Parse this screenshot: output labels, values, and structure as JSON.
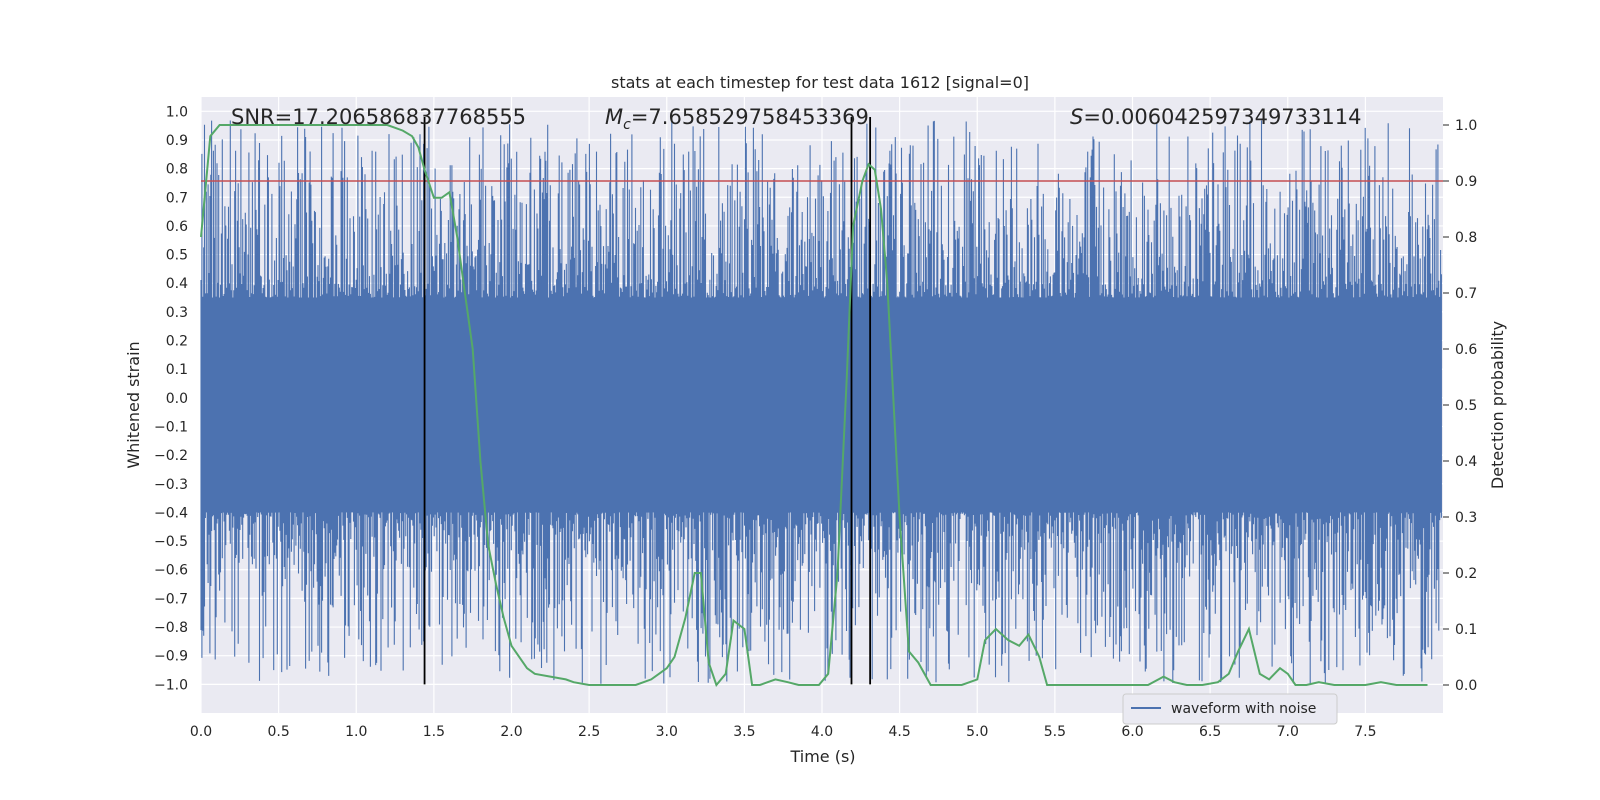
{
  "chart_data": {
    "type": "line",
    "title": "stats at each timestep for test data 1612 [signal=0]",
    "xlabel": "Time (s)",
    "ylabel": "Whitened strain",
    "ylabel_right": "Detection probability",
    "xlim": [
      0,
      8
    ],
    "ylim": [
      -1.1,
      1.05
    ],
    "ylim_right": [
      -0.05,
      1.05
    ],
    "xticks": [
      0.0,
      0.5,
      1.0,
      1.5,
      2.0,
      2.5,
      3.0,
      3.5,
      4.0,
      4.5,
      5.0,
      5.5,
      6.0,
      6.5,
      7.0,
      7.5
    ],
    "xtick_labels": [
      "0.0",
      "0.5",
      "1.0",
      "1.5",
      "2.0",
      "2.5",
      "3.0",
      "3.5",
      "4.0",
      "4.5",
      "5.0",
      "5.5",
      "6.0",
      "6.5",
      "7.0",
      "7.5"
    ],
    "yticks": [
      -1.0,
      -0.9,
      -0.8,
      -0.7,
      -0.6,
      -0.5,
      -0.4,
      -0.3,
      -0.2,
      -0.1,
      0.0,
      0.1,
      0.2,
      0.3,
      0.4,
      0.5,
      0.6,
      0.7,
      0.8,
      0.9,
      1.0
    ],
    "ytick_labels": [
      "−1.0",
      "−0.9",
      "−0.8",
      "−0.7",
      "−0.6",
      "−0.5",
      "−0.4",
      "−0.3",
      "−0.2",
      "−0.1",
      "0.0",
      "0.1",
      "0.2",
      "0.3",
      "0.4",
      "0.5",
      "0.6",
      "0.7",
      "0.8",
      "0.9",
      "1.0"
    ],
    "yticks_right": [
      0.0,
      0.1,
      0.2,
      0.3,
      0.4,
      0.5,
      0.6,
      0.7,
      0.8,
      0.9,
      1.0
    ],
    "ytick_labels_right": [
      "0.0",
      "0.1",
      "0.2",
      "0.3",
      "0.4",
      "0.5",
      "0.6",
      "0.7",
      "0.8",
      "0.9",
      "1.0"
    ],
    "grid": true,
    "legend": {
      "position": "bottom-right",
      "entries": [
        {
          "label": "waveform with noise",
          "color": "#4c72b0"
        }
      ]
    },
    "annotations": {
      "snr": "SNR=17.206586837768555",
      "mc_symbol": "M",
      "mc_sub": "c",
      "mc_value": "=7.658529758453369",
      "s_symbol": "S",
      "s_value": "=0.006042597349733114"
    },
    "waveform": {
      "name": "waveform with noise",
      "color": "#4c72b0",
      "envelope_upper": 0.35,
      "envelope_lower": -0.4,
      "sample_count": 1400,
      "x_range": [
        0.0,
        7.99
      ]
    },
    "threshold": {
      "value_right": 0.9,
      "color": "#c44e52"
    },
    "vlines": {
      "x": [
        1.44,
        4.19,
        4.31
      ],
      "ymin": -1.0,
      "ymax": 0.98,
      "color": "#000000"
    },
    "probability": {
      "name": "detection probability",
      "color": "#55a868",
      "x": [
        0.0,
        0.06,
        0.12,
        0.2,
        0.3,
        0.4,
        0.5,
        0.6,
        0.7,
        0.8,
        0.9,
        1.0,
        1.1,
        1.2,
        1.3,
        1.36,
        1.4,
        1.44,
        1.5,
        1.55,
        1.6,
        1.65,
        1.7,
        1.75,
        1.8,
        1.85,
        1.9,
        1.95,
        2.0,
        2.1,
        2.15,
        2.25,
        2.35,
        2.4,
        2.5,
        2.6,
        2.7,
        2.8,
        2.85,
        2.9,
        2.95,
        3.0,
        3.05,
        3.12,
        3.18,
        3.22,
        3.27,
        3.32,
        3.38,
        3.43,
        3.5,
        3.55,
        3.6,
        3.7,
        3.78,
        3.85,
        3.92,
        3.98,
        4.04,
        4.1,
        4.16,
        4.2,
        4.26,
        4.3,
        4.34,
        4.38,
        4.42,
        4.5,
        4.56,
        4.62,
        4.7,
        4.8,
        4.9,
        4.95,
        5.0,
        5.05,
        5.12,
        5.2,
        5.27,
        5.33,
        5.4,
        5.45,
        5.52,
        5.6,
        5.7,
        5.8,
        5.9,
        6.0,
        6.1,
        6.2,
        6.27,
        6.35,
        6.45,
        6.55,
        6.62,
        6.68,
        6.75,
        6.82,
        6.88,
        6.95,
        7.0,
        7.05,
        7.12,
        7.2,
        7.3,
        7.4,
        7.5,
        7.6,
        7.7,
        7.8,
        7.9
      ],
      "y": [
        0.8,
        0.98,
        1.0,
        1.0,
        1.0,
        1.0,
        1.0,
        1.0,
        1.0,
        1.0,
        1.0,
        1.0,
        1.0,
        1.0,
        0.99,
        0.98,
        0.96,
        0.92,
        0.87,
        0.87,
        0.88,
        0.8,
        0.7,
        0.6,
        0.4,
        0.25,
        0.18,
        0.12,
        0.07,
        0.03,
        0.02,
        0.015,
        0.01,
        0.005,
        0.0,
        0.0,
        0.0,
        0.0,
        0.005,
        0.01,
        0.02,
        0.03,
        0.05,
        0.12,
        0.2,
        0.2,
        0.04,
        0.0,
        0.02,
        0.115,
        0.1,
        0.0,
        0.0,
        0.01,
        0.005,
        0.0,
        0.0,
        0.0,
        0.02,
        0.2,
        0.55,
        0.82,
        0.9,
        0.93,
        0.92,
        0.85,
        0.72,
        0.3,
        0.06,
        0.04,
        0.0,
        0.0,
        0.0,
        0.005,
        0.01,
        0.08,
        0.1,
        0.08,
        0.07,
        0.09,
        0.05,
        0.0,
        0.0,
        0.0,
        0.0,
        0.0,
        0.0,
        0.0,
        0.0,
        0.015,
        0.005,
        0.0,
        0.0,
        0.005,
        0.02,
        0.06,
        0.1,
        0.02,
        0.01,
        0.03,
        0.02,
        0.0,
        0.0,
        0.005,
        0.0,
        0.0,
        0.0,
        0.005,
        0.0,
        0.0,
        0.0
      ]
    }
  }
}
